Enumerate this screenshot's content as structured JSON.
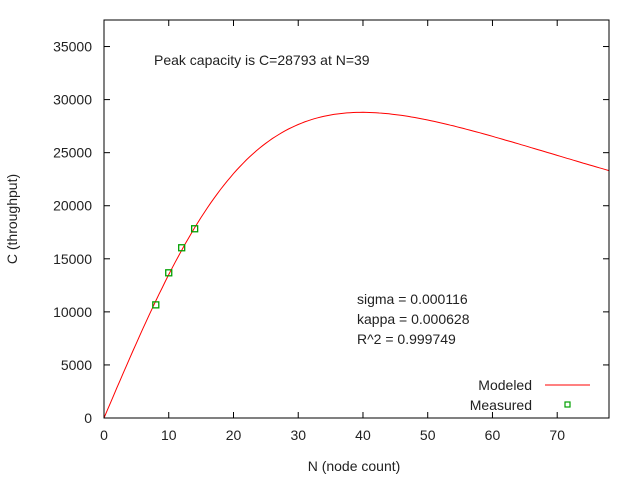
{
  "chart_data": {
    "type": "line",
    "title": "",
    "xlabel": "N (node count)",
    "ylabel": "C (throughput)",
    "xlim": [
      0,
      78
    ],
    "ylim": [
      0,
      37500
    ],
    "xticks": [
      0,
      10,
      20,
      30,
      40,
      50,
      60,
      70
    ],
    "yticks": [
      0,
      5000,
      10000,
      15000,
      20000,
      25000,
      30000,
      35000
    ],
    "grid": false,
    "legend": "bottom-right",
    "model": {
      "lambda": 1428.6,
      "sigma": 0.000116,
      "kappa": 0.000628
    },
    "series": [
      {
        "name": "Modeled",
        "kind": "line",
        "color": "#ff0000",
        "function": "lambda*N/(1+sigma*(N-1)+kappa*N*(N-1))"
      },
      {
        "name": "Measured",
        "kind": "points",
        "color": "#00a000",
        "x": [
          8,
          10,
          12,
          14
        ],
        "y": [
          10660,
          13680,
          16040,
          17830
        ]
      }
    ],
    "annotations": {
      "peak": "Peak capacity is C=28793 at N=39",
      "sigma": "sigma = 0.000116",
      "kappa": "kappa = 0.000628",
      "r2": "R^2 = 0.999749"
    }
  }
}
